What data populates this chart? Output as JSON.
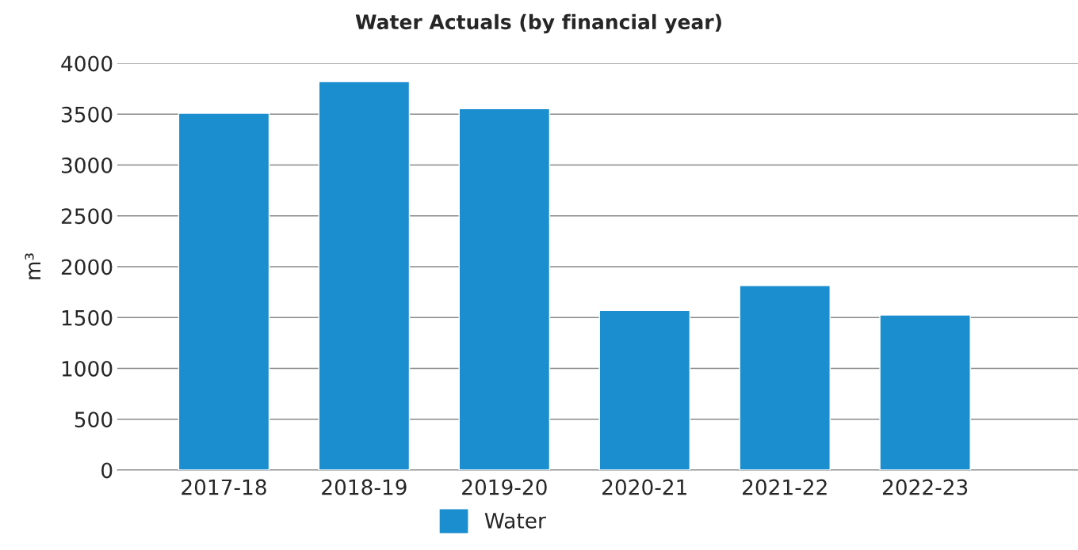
{
  "chart_data": {
    "type": "bar",
    "title": "Water Actuals (by financial year)",
    "ylabel": "m³",
    "categories": [
      "2017-18",
      "2018-19",
      "2019-20",
      "2020-21",
      "2021-22",
      "2022-23"
    ],
    "series": [
      {
        "name": "Water",
        "color": "#1b8ecf",
        "values": [
          3510,
          3820,
          3555,
          1570,
          1815,
          1525
        ]
      }
    ],
    "ylim": [
      0,
      4000
    ],
    "yticks": [
      0,
      500,
      1000,
      1500,
      2000,
      2500,
      3000,
      3500,
      4000
    ],
    "grid": "y",
    "legend": "bottom"
  }
}
